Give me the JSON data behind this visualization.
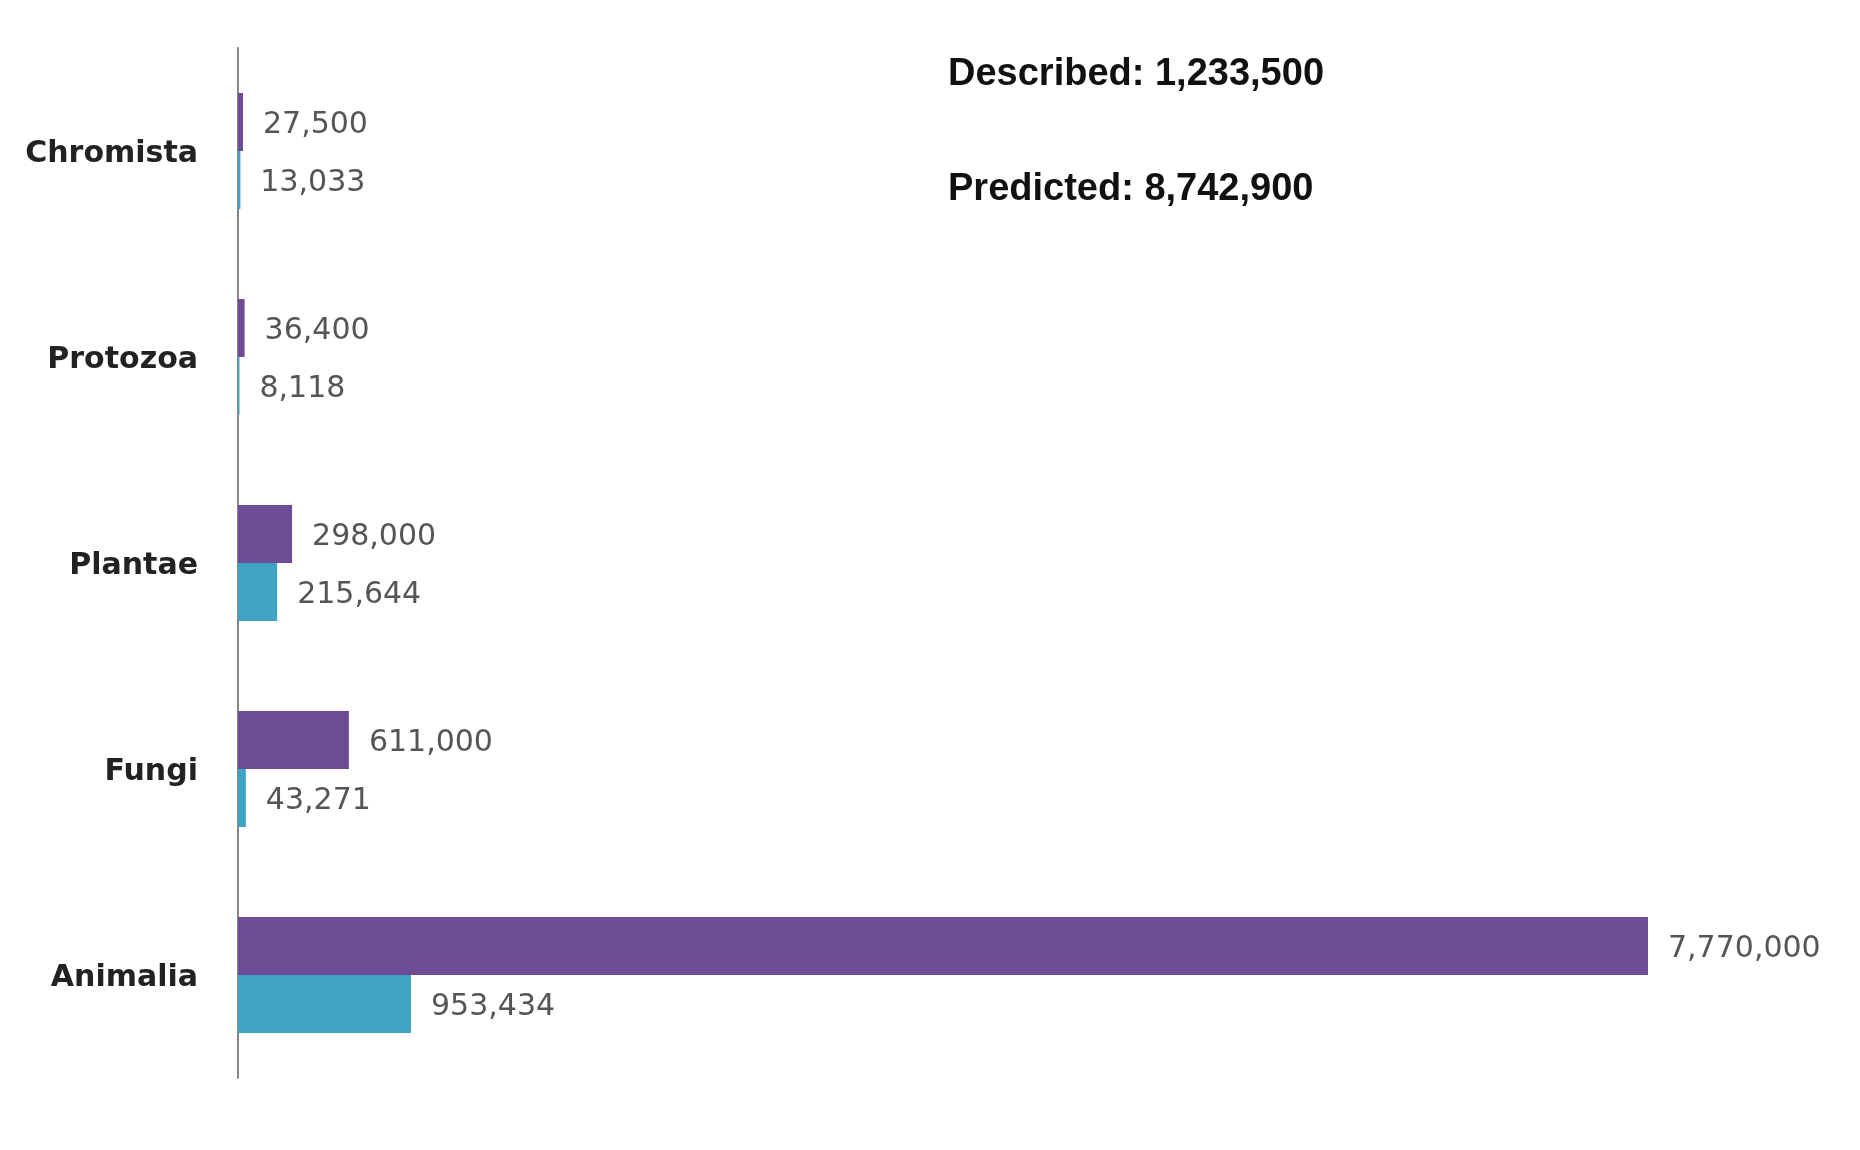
{
  "chart_data": {
    "type": "bar",
    "orientation": "horizontal",
    "categories": [
      "Chromista",
      "Protozoa",
      "Plantae",
      "Fungi",
      "Animalia"
    ],
    "series": [
      {
        "color": "#6e4c96",
        "values": [
          27500,
          36400,
          298000,
          611000,
          7770000
        ],
        "value_labels": [
          "27,500",
          "36,400",
          "298,000",
          "611,000",
          "7,770,000"
        ]
      },
      {
        "color": "#3fa4c4",
        "values": [
          13033,
          8118,
          215644,
          43271,
          953434
        ],
        "value_labels": [
          "13,033",
          "8,118",
          "215,644",
          "43,271",
          "953,434"
        ]
      }
    ],
    "xlim": [
      0,
      7770000
    ],
    "tick_labels": "y",
    "annotations": [
      "Described: 1,233,500",
      "Predicted: 8,742,900"
    ]
  }
}
